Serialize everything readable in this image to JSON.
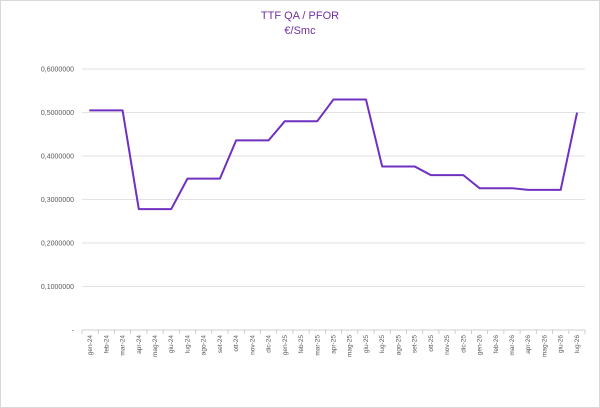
{
  "chart_data": {
    "type": "line",
    "title": "TTF QA / PFOR",
    "subtitle": "€/Smc",
    "xlabel": "",
    "ylabel": "",
    "ylim": [
      0,
      0.6
    ],
    "grid": true,
    "legend": "none",
    "colors": {
      "line": "#7030c0",
      "title": "#7030a0",
      "grid": "#d9d9d9",
      "axis": "#bfbfbf",
      "tick": "#595959"
    },
    "y_ticks": [
      {
        "value": 0,
        "label": "-"
      },
      {
        "value": 0.1,
        "label": "0,1000000"
      },
      {
        "value": 0.2,
        "label": "0,2000000"
      },
      {
        "value": 0.3,
        "label": "0,3000000"
      },
      {
        "value": 0.4,
        "label": "0,4000000"
      },
      {
        "value": 0.5,
        "label": "0,5000000"
      },
      {
        "value": 0.6,
        "label": "0,6000000"
      }
    ],
    "categories": [
      "gen-24",
      "feb-24",
      "mar-24",
      "apr-24",
      "mag-24",
      "giu-24",
      "lug-24",
      "ago-24",
      "set-24",
      "ott-24",
      "nov-24",
      "dic-24",
      "gen-25",
      "feb-25",
      "mar-25",
      "apr-25",
      "mag-25",
      "giu-25",
      "lug-25",
      "ago-25",
      "set-25",
      "ott-25",
      "nov-25",
      "dic-25",
      "gen-26",
      "feb-26",
      "mar-26",
      "apr-26",
      "mag-26",
      "giu-26",
      "lug-26"
    ],
    "series": [
      {
        "values": [
          0.505,
          0.505,
          0.505,
          0.278,
          0.278,
          0.278,
          0.348,
          0.348,
          0.348,
          0.436,
          0.436,
          0.436,
          0.48,
          0.48,
          0.48,
          0.53,
          0.53,
          0.53,
          0.376,
          0.376,
          0.376,
          0.356,
          0.356,
          0.356,
          0.326,
          0.326,
          0.326,
          0.322,
          0.322,
          0.322,
          0.498
        ]
      }
    ]
  }
}
